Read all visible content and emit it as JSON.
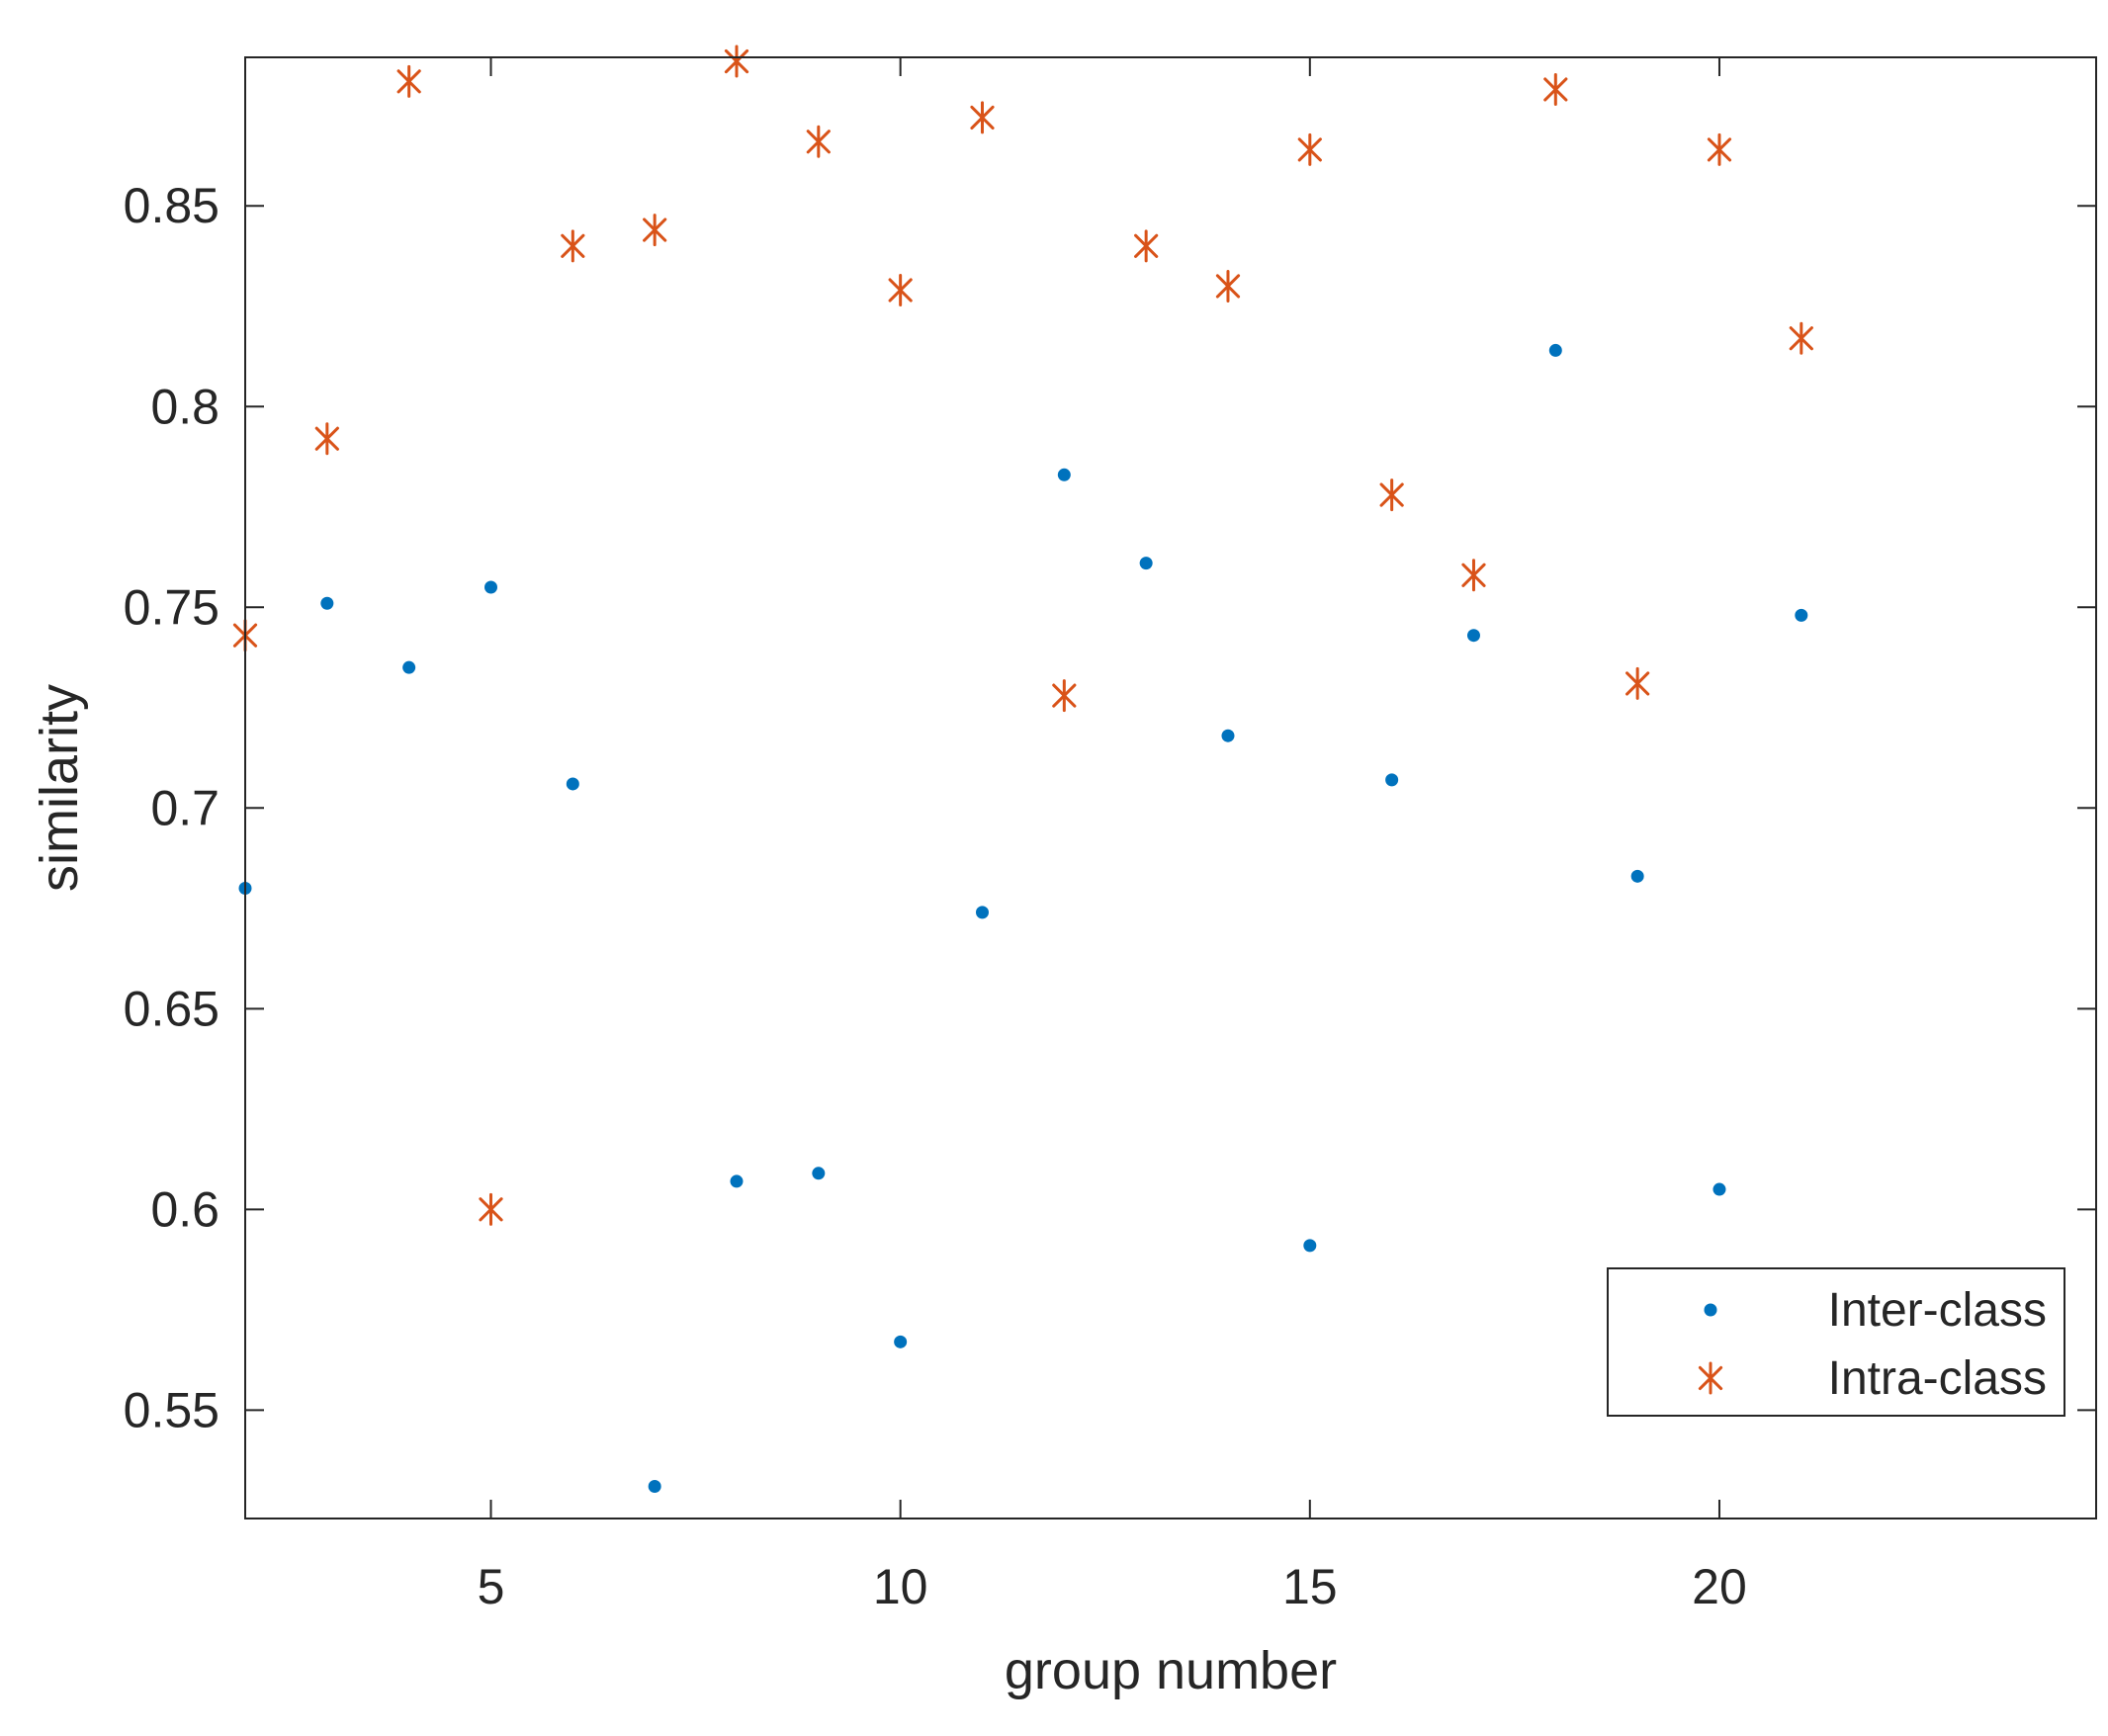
{
  "chart_data": {
    "type": "scatter",
    "title": "",
    "xlabel": "group number",
    "ylabel": "similarity",
    "xlim": [
      2,
      24.6
    ],
    "ylim": [
      0.523,
      0.887
    ],
    "xticks": [
      5,
      10,
      15,
      20
    ],
    "xtick_labels": [
      "5",
      "10",
      "15",
      "20"
    ],
    "yticks": [
      0.55,
      0.6,
      0.65,
      0.7,
      0.75,
      0.8,
      0.85
    ],
    "ytick_labels": [
      "0.55",
      "0.6",
      "0.65",
      "0.7",
      "0.75",
      "0.8",
      "0.85"
    ],
    "grid": false,
    "legend_position": "bottom-right",
    "series": [
      {
        "name": "Inter-class",
        "marker": "dot",
        "color": "#0072BD",
        "x": [
          2,
          3,
          4,
          5,
          6,
          7,
          8,
          9,
          10,
          11,
          12,
          13,
          14,
          15,
          16,
          17,
          18,
          19,
          20,
          21
        ],
        "y": [
          0.68,
          0.751,
          0.735,
          0.755,
          0.706,
          0.531,
          0.607,
          0.609,
          0.567,
          0.674,
          0.783,
          0.761,
          0.718,
          0.591,
          0.707,
          0.743,
          0.814,
          0.683,
          0.605,
          0.748
        ]
      },
      {
        "name": "Intra-class",
        "marker": "asterisk",
        "color": "#D95319",
        "x": [
          2,
          3,
          4,
          5,
          6,
          7,
          8,
          9,
          10,
          11,
          12,
          13,
          14,
          15,
          16,
          17,
          18,
          19,
          20,
          21
        ],
        "y": [
          0.743,
          0.792,
          0.881,
          0.6,
          0.84,
          0.844,
          0.886,
          0.866,
          0.829,
          0.872,
          0.728,
          0.84,
          0.83,
          0.864,
          0.778,
          0.758,
          0.879,
          0.731,
          0.864,
          0.817
        ]
      }
    ]
  }
}
